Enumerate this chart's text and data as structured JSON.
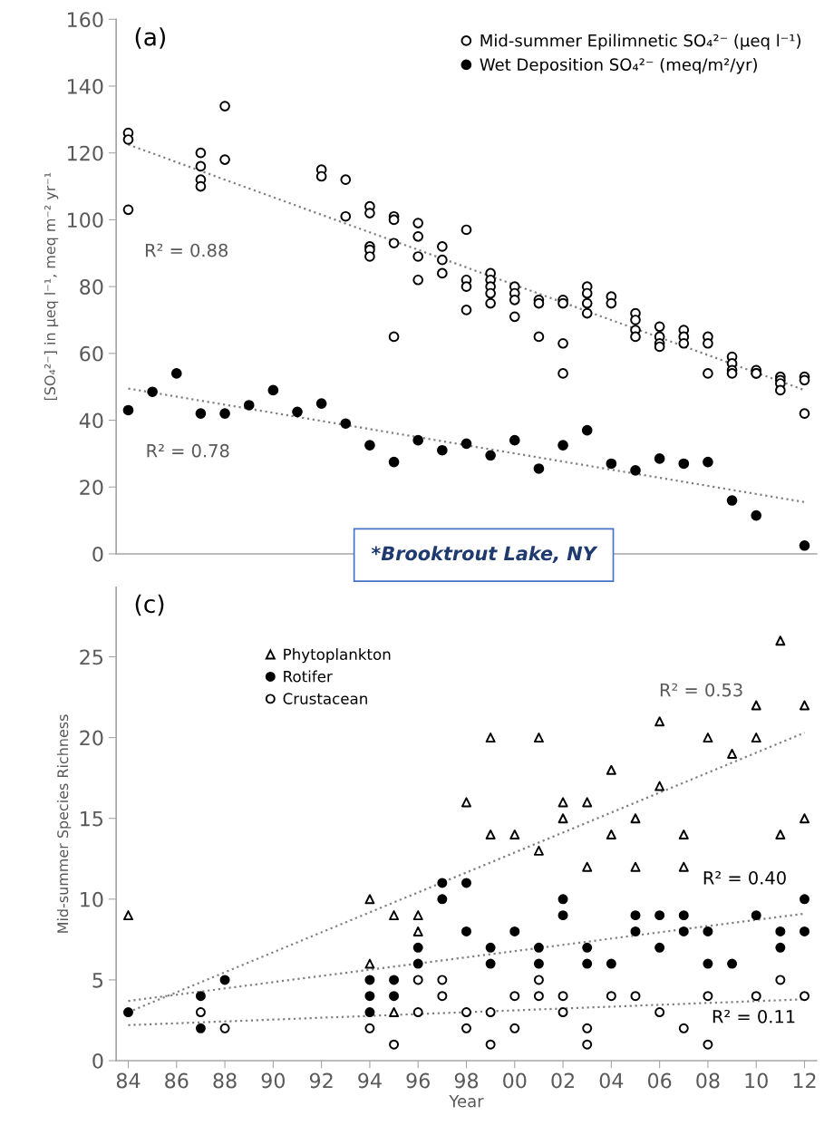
{
  "chart_data": [
    {
      "type": "scatter",
      "title": "(a)",
      "ylabel": "[SO₄²⁻] in μeq l⁻¹, meq m⁻² yr⁻¹",
      "xlim": [
        1983.5,
        2012.5
      ],
      "ylim": [
        0,
        160
      ],
      "yticks": [
        0,
        20,
        40,
        60,
        80,
        100,
        120,
        140,
        160
      ],
      "tick_labels": "y",
      "grid": false,
      "legend": "top right",
      "annotations": [
        "R² = 0.88",
        "R² = 0.78",
        "*Brooktrout Lake, NY"
      ],
      "series": [
        {
          "name": "Mid-summer Epilimnetic SO₄²⁻ (μeq l⁻¹)",
          "color": "#ffffff",
          "marker": "circle",
          "x": [
            1984,
            1984,
            1984,
            1987,
            1987,
            1987,
            1987,
            1988,
            1988,
            1992,
            1992,
            1993,
            1993,
            1994,
            1994,
            1994,
            1994,
            1994,
            1995,
            1995,
            1995,
            1995,
            1996,
            1996,
            1996,
            1996,
            1997,
            1997,
            1997,
            1998,
            1998,
            1998,
            1998,
            1999,
            1999,
            1999,
            1999,
            1999,
            2000,
            2000,
            2000,
            2000,
            2001,
            2001,
            2001,
            2002,
            2002,
            2002,
            2002,
            2003,
            2003,
            2003,
            2003,
            2004,
            2004,
            2005,
            2005,
            2005,
            2005,
            2006,
            2006,
            2006,
            2006,
            2007,
            2007,
            2007,
            2008,
            2008,
            2008,
            2009,
            2009,
            2009,
            2009,
            2010,
            2010,
            2010,
            2011,
            2011,
            2011,
            2011,
            2012,
            2012,
            2012
          ],
          "values": [
            126,
            124,
            103,
            120,
            116,
            112,
            110,
            134,
            118,
            115,
            113,
            112,
            101,
            104,
            102,
            92,
            91,
            89,
            101,
            100,
            93,
            65,
            99,
            95,
            89,
            82,
            92,
            88,
            84,
            97,
            82,
            80,
            73,
            84,
            82,
            80,
            78,
            75,
            80,
            78,
            76,
            71,
            76,
            75,
            65,
            76,
            75,
            63,
            54,
            80,
            78,
            75,
            72,
            77,
            75,
            72,
            70,
            67,
            65,
            68,
            65,
            63,
            62,
            67,
            65,
            63,
            65,
            63,
            54,
            59,
            57,
            55,
            54,
            55,
            54,
            54,
            53,
            52,
            51,
            49,
            53,
            52,
            42
          ]
        },
        {
          "name": "Wet Deposition SO₄²⁻ (meq/m²/yr)",
          "color": "#000000",
          "marker": "circle",
          "x": [
            1984,
            1985,
            1986,
            1987,
            1988,
            1989,
            1990,
            1991,
            1992,
            1993,
            1994,
            1995,
            1996,
            1997,
            1998,
            1999,
            2000,
            2001,
            2002,
            2003,
            2004,
            2005,
            2006,
            2007,
            2008,
            2009,
            2010,
            2012
          ],
          "values": [
            43,
            48.5,
            54,
            42,
            42,
            44.5,
            49,
            42.5,
            45,
            39,
            32.5,
            27.5,
            34,
            31,
            33,
            29.5,
            34,
            25.5,
            32.5,
            37,
            27,
            25,
            28.5,
            27,
            27.5,
            16,
            11.5,
            2.5
          ]
        },
        {
          "type": "line",
          "color": "#808080",
          "line_style": "dotted",
          "x": [
            1984,
            2012
          ],
          "values": [
            122.5,
            49
          ]
        },
        {
          "type": "line",
          "color": "#808080",
          "line_style": "dotted",
          "x": [
            1984,
            2012
          ],
          "values": [
            49.5,
            15.5
          ]
        }
      ]
    },
    {
      "type": "scatter",
      "title": "(c)",
      "xlabel": "Year",
      "ylabel": "Mid-summer Species Richness",
      "xlim": [
        1983.5,
        2012.5
      ],
      "ylim": [
        0,
        29.3
      ],
      "yticks": [
        0,
        5,
        10,
        15,
        20,
        25
      ],
      "xticks": [
        {
          "value": 1984,
          "label": "84"
        },
        {
          "value": 1986,
          "label": "86"
        },
        {
          "value": 1988,
          "label": "88"
        },
        {
          "value": 1990,
          "label": "90"
        },
        {
          "value": 1992,
          "label": "92"
        },
        {
          "value": 1994,
          "label": "94"
        },
        {
          "value": 1996,
          "label": "96"
        },
        {
          "value": 1998,
          "label": "98"
        },
        {
          "value": 2000,
          "label": "00"
        },
        {
          "value": 2002,
          "label": "02"
        },
        {
          "value": 2004,
          "label": "04"
        },
        {
          "value": 2006,
          "label": "06"
        },
        {
          "value": 2008,
          "label": "08"
        },
        {
          "value": 2010,
          "label": "10"
        },
        {
          "value": 2012,
          "label": "12"
        }
      ],
      "grid": false,
      "legend": "top left",
      "annotations": [
        "R² = 0.53",
        "R² = 0.40",
        "R² = 0.11"
      ],
      "series": [
        {
          "name": "Phytoplankton",
          "color": "#ffffff",
          "marker": "triangle",
          "x": [
            1984,
            1994,
            1994,
            1995,
            1995,
            1996,
            1996,
            1998,
            1999,
            1999,
            2000,
            2001,
            2001,
            2002,
            2002,
            2003,
            2003,
            2004,
            2004,
            2005,
            2005,
            2006,
            2006,
            2007,
            2007,
            2008,
            2009,
            2010,
            2010,
            2011,
            2011,
            2012,
            2012
          ],
          "values": [
            9,
            10,
            6,
            9,
            3,
            9,
            8,
            16,
            20,
            14,
            14,
            20,
            13,
            16,
            15,
            16,
            12,
            18,
            14,
            15,
            12,
            21,
            17,
            14,
            12,
            20,
            19,
            22,
            20,
            26,
            14,
            22,
            15
          ]
        },
        {
          "name": "Rotifer",
          "color": "#000000",
          "marker": "circle",
          "x": [
            1984,
            1987,
            1987,
            1988,
            1994,
            1994,
            1994,
            1995,
            1995,
            1996,
            1996,
            1997,
            1997,
            1998,
            1998,
            1999,
            1999,
            2000,
            2001,
            2001,
            2002,
            2002,
            2003,
            2003,
            2004,
            2005,
            2005,
            2006,
            2006,
            2007,
            2007,
            2008,
            2008,
            2009,
            2010,
            2011,
            2011,
            2012,
            2012
          ],
          "values": [
            3,
            4,
            2,
            5,
            5,
            4,
            3,
            5,
            4,
            7,
            6,
            11,
            10,
            11,
            8,
            7,
            6,
            8,
            7,
            6,
            10,
            9,
            7,
            6,
            6,
            9,
            8,
            9,
            7,
            9,
            8,
            8,
            6,
            6,
            9,
            8,
            7,
            10,
            8
          ]
        },
        {
          "name": "Crustacean",
          "color": "#ffffff",
          "marker": "circle",
          "x": [
            1987,
            1988,
            1994,
            1995,
            1996,
            1996,
            1997,
            1997,
            1998,
            1998,
            1999,
            1999,
            2000,
            2000,
            2001,
            2001,
            2002,
            2002,
            2003,
            2003,
            2004,
            2005,
            2006,
            2007,
            2008,
            2008,
            2010,
            2011,
            2012
          ],
          "values": [
            3,
            2,
            2,
            1,
            5,
            3,
            5,
            4,
            3,
            2,
            3,
            1,
            4,
            2,
            5,
            4,
            4,
            3,
            2,
            1,
            4,
            4,
            3,
            2,
            4,
            1,
            4,
            5,
            4
          ]
        },
        {
          "type": "line",
          "color": "#808080",
          "line_style": "dotted",
          "x": [
            1984,
            2012
          ],
          "values": [
            3,
            20.3
          ]
        },
        {
          "type": "line",
          "color": "#808080",
          "line_style": "dotted",
          "x": [
            1984,
            2012
          ],
          "values": [
            3.7,
            9.1
          ]
        },
        {
          "type": "line",
          "color": "#808080",
          "line_style": "dotted",
          "x": [
            1984,
            2012
          ],
          "values": [
            2.2,
            3.8
          ]
        }
      ]
    }
  ]
}
